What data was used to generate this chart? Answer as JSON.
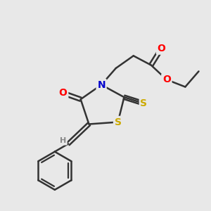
{
  "bg_color": "#e8e8e8",
  "bond_color": "#333333",
  "bond_width": 1.8,
  "atom_colors": {
    "O": "#ff0000",
    "N": "#0000cc",
    "S": "#ccaa00",
    "H": "#888888"
  },
  "figsize": [
    3.0,
    3.0
  ],
  "dpi": 100
}
